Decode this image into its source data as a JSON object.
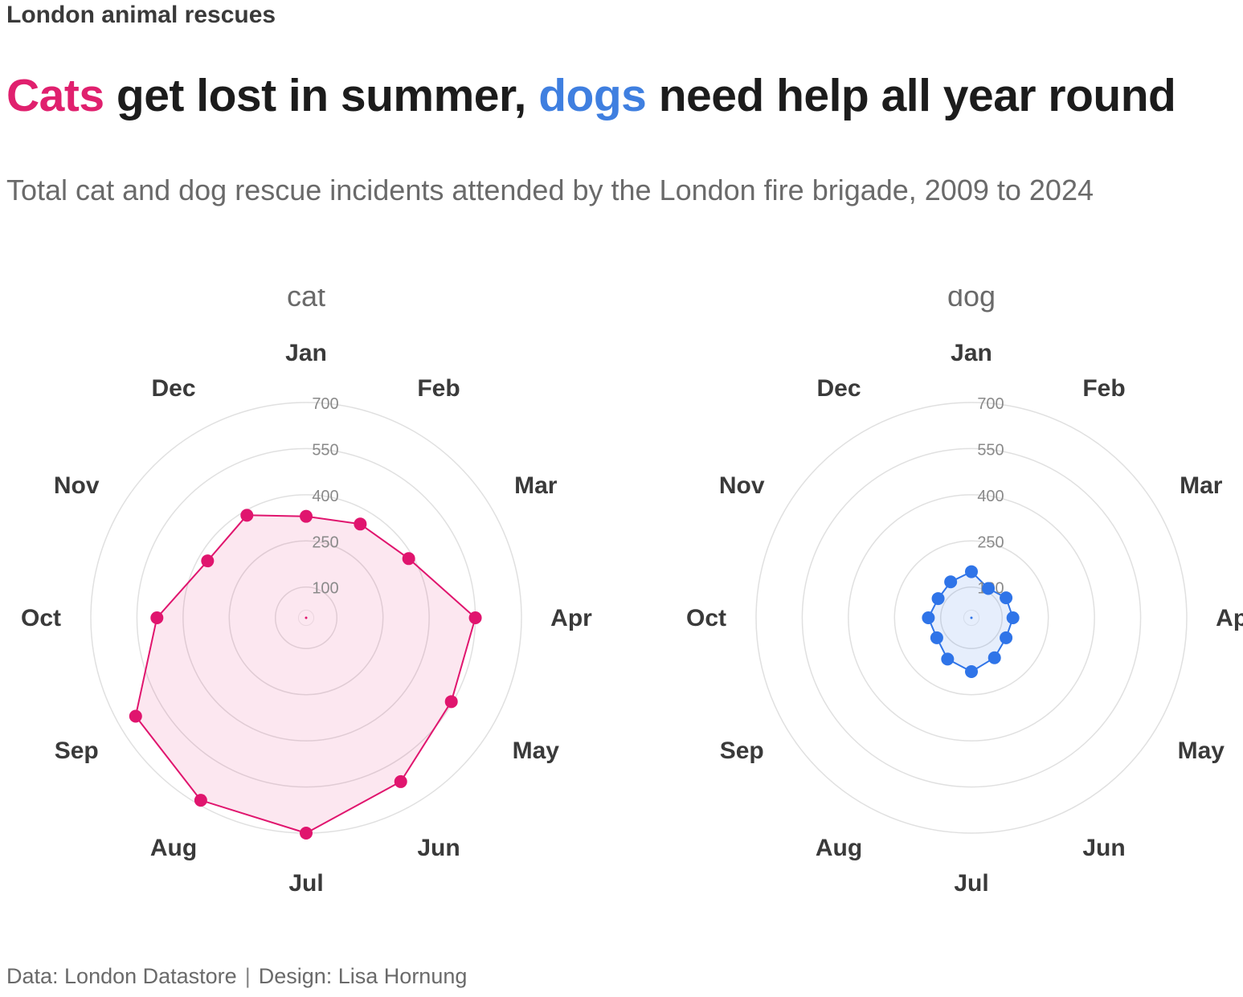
{
  "header": {
    "eyebrow": "London animal rescues",
    "headline_cats": "Cats",
    "headline_mid": "get lost in summer,",
    "headline_dogs": "dogs",
    "headline_end": "need help all year round",
    "subtitle": "Total cat and dog rescue incidents attended by the London fire brigade, 2009 to 2024"
  },
  "footer": {
    "source": "Data: London Datastore",
    "separator": "|",
    "design": "Design: Lisa Hornung"
  },
  "colors": {
    "cat": "#e0156e",
    "dog": "#2f74e8",
    "grid": "#e0e0e0",
    "text": "#3a3a3a"
  },
  "chart_data": [
    {
      "type": "radar",
      "title": "cat",
      "categories": [
        "Jan",
        "Feb",
        "Mar",
        "Apr",
        "May",
        "Jun",
        "Jul",
        "Aug",
        "Sep",
        "Oct",
        "Nov",
        "Dec"
      ],
      "values": [
        330,
        352,
        385,
        550,
        545,
        615,
        700,
        685,
        640,
        485,
        370,
        385
      ],
      "radial_ticks": [
        100,
        250,
        400,
        550,
        700
      ],
      "rlim": [
        0,
        700
      ]
    },
    {
      "type": "radar",
      "title": "dog",
      "categories": [
        "Jan",
        "Feb",
        "Mar",
        "Apr",
        "May",
        "Jun",
        "Jul",
        "Aug",
        "Sep",
        "Oct",
        "Nov",
        "Dec"
      ],
      "values": [
        150,
        110,
        130,
        135,
        130,
        150,
        175,
        155,
        130,
        140,
        125,
        135
      ],
      "radial_ticks": [
        100,
        250,
        400,
        550,
        700
      ],
      "rlim": [
        0,
        700
      ]
    }
  ]
}
